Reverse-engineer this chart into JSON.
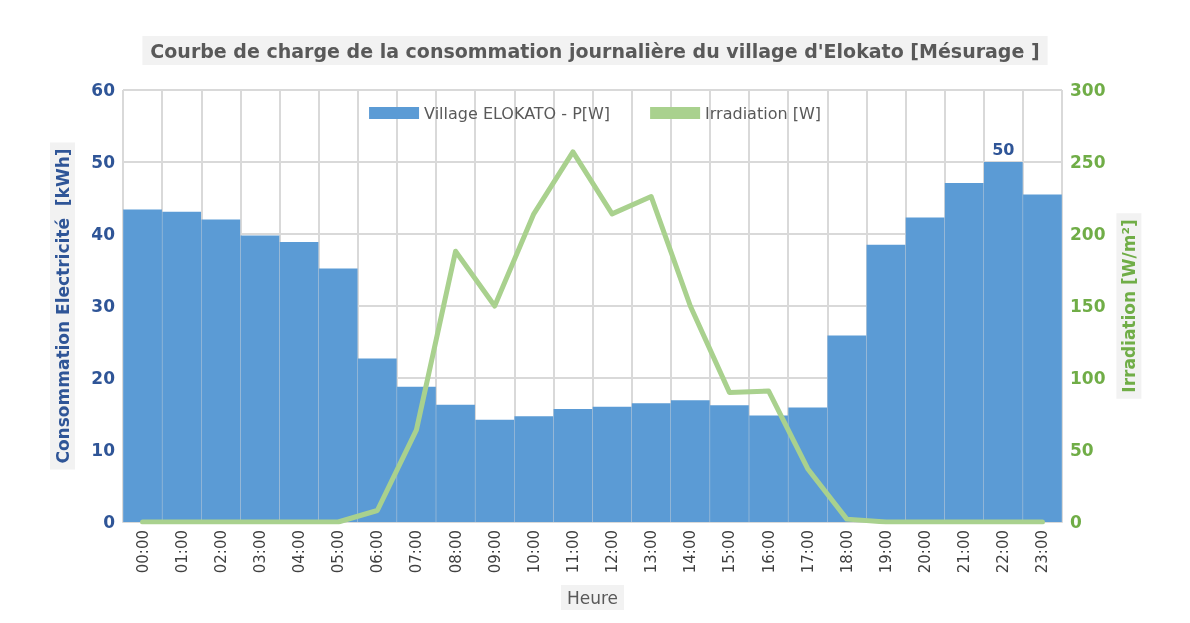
{
  "chart_data": {
    "type": "bar",
    "title": "Courbe de charge de la consommation journalière du village d'Elokato [Mésurage ]",
    "xlabel": "Heure",
    "ylabel": "Consommation Electricité  [kWh]",
    "y2label": "Irradiation [W/m²]",
    "categories": [
      "00:00",
      "01:00",
      "02:00",
      "03:00",
      "04:00",
      "05:00",
      "06:00",
      "07:00",
      "08:00",
      "09:00",
      "10:00",
      "11:00",
      "12:00",
      "13:00",
      "14:00",
      "15:00",
      "16:00",
      "17:00",
      "18:00",
      "19:00",
      "20:00",
      "21:00",
      "22:00",
      "23:00"
    ],
    "series": [
      {
        "name": "Village ELOKATO - P[W]",
        "color": "#5b9bd5",
        "values": [
          43.4,
          43.1,
          42.0,
          39.8,
          38.9,
          35.2,
          22.7,
          18.8,
          16.3,
          14.2,
          14.7,
          15.7,
          16.0,
          16.5,
          16.9,
          16.2,
          14.8,
          15.9,
          25.9,
          38.5,
          42.3,
          47.1,
          50,
          45.5
        ],
        "value_labels": [
          null,
          null,
          null,
          null,
          null,
          null,
          null,
          null,
          null,
          null,
          null,
          null,
          null,
          null,
          null,
          null,
          null,
          null,
          null,
          null,
          null,
          null,
          "50",
          null
        ]
      },
      {
        "name": "Irradiation [W]",
        "type": "line",
        "axis": "y2",
        "color": "#a9d18e",
        "values": [
          0,
          0,
          0,
          0,
          0,
          0,
          8,
          64,
          188,
          150,
          214,
          257,
          214,
          226,
          150,
          90,
          91,
          37,
          2,
          0,
          0,
          0,
          0,
          0
        ]
      }
    ],
    "ylim": [
      0,
      60
    ],
    "yticks": [
      0,
      10,
      20,
      30,
      40,
      50,
      60
    ],
    "y2lim": [
      0,
      300
    ],
    "y2ticks": [
      0,
      50,
      100,
      150,
      200,
      250,
      300
    ],
    "grid": true,
    "legend": "top",
    "marker": "none",
    "line_style": "solid"
  }
}
